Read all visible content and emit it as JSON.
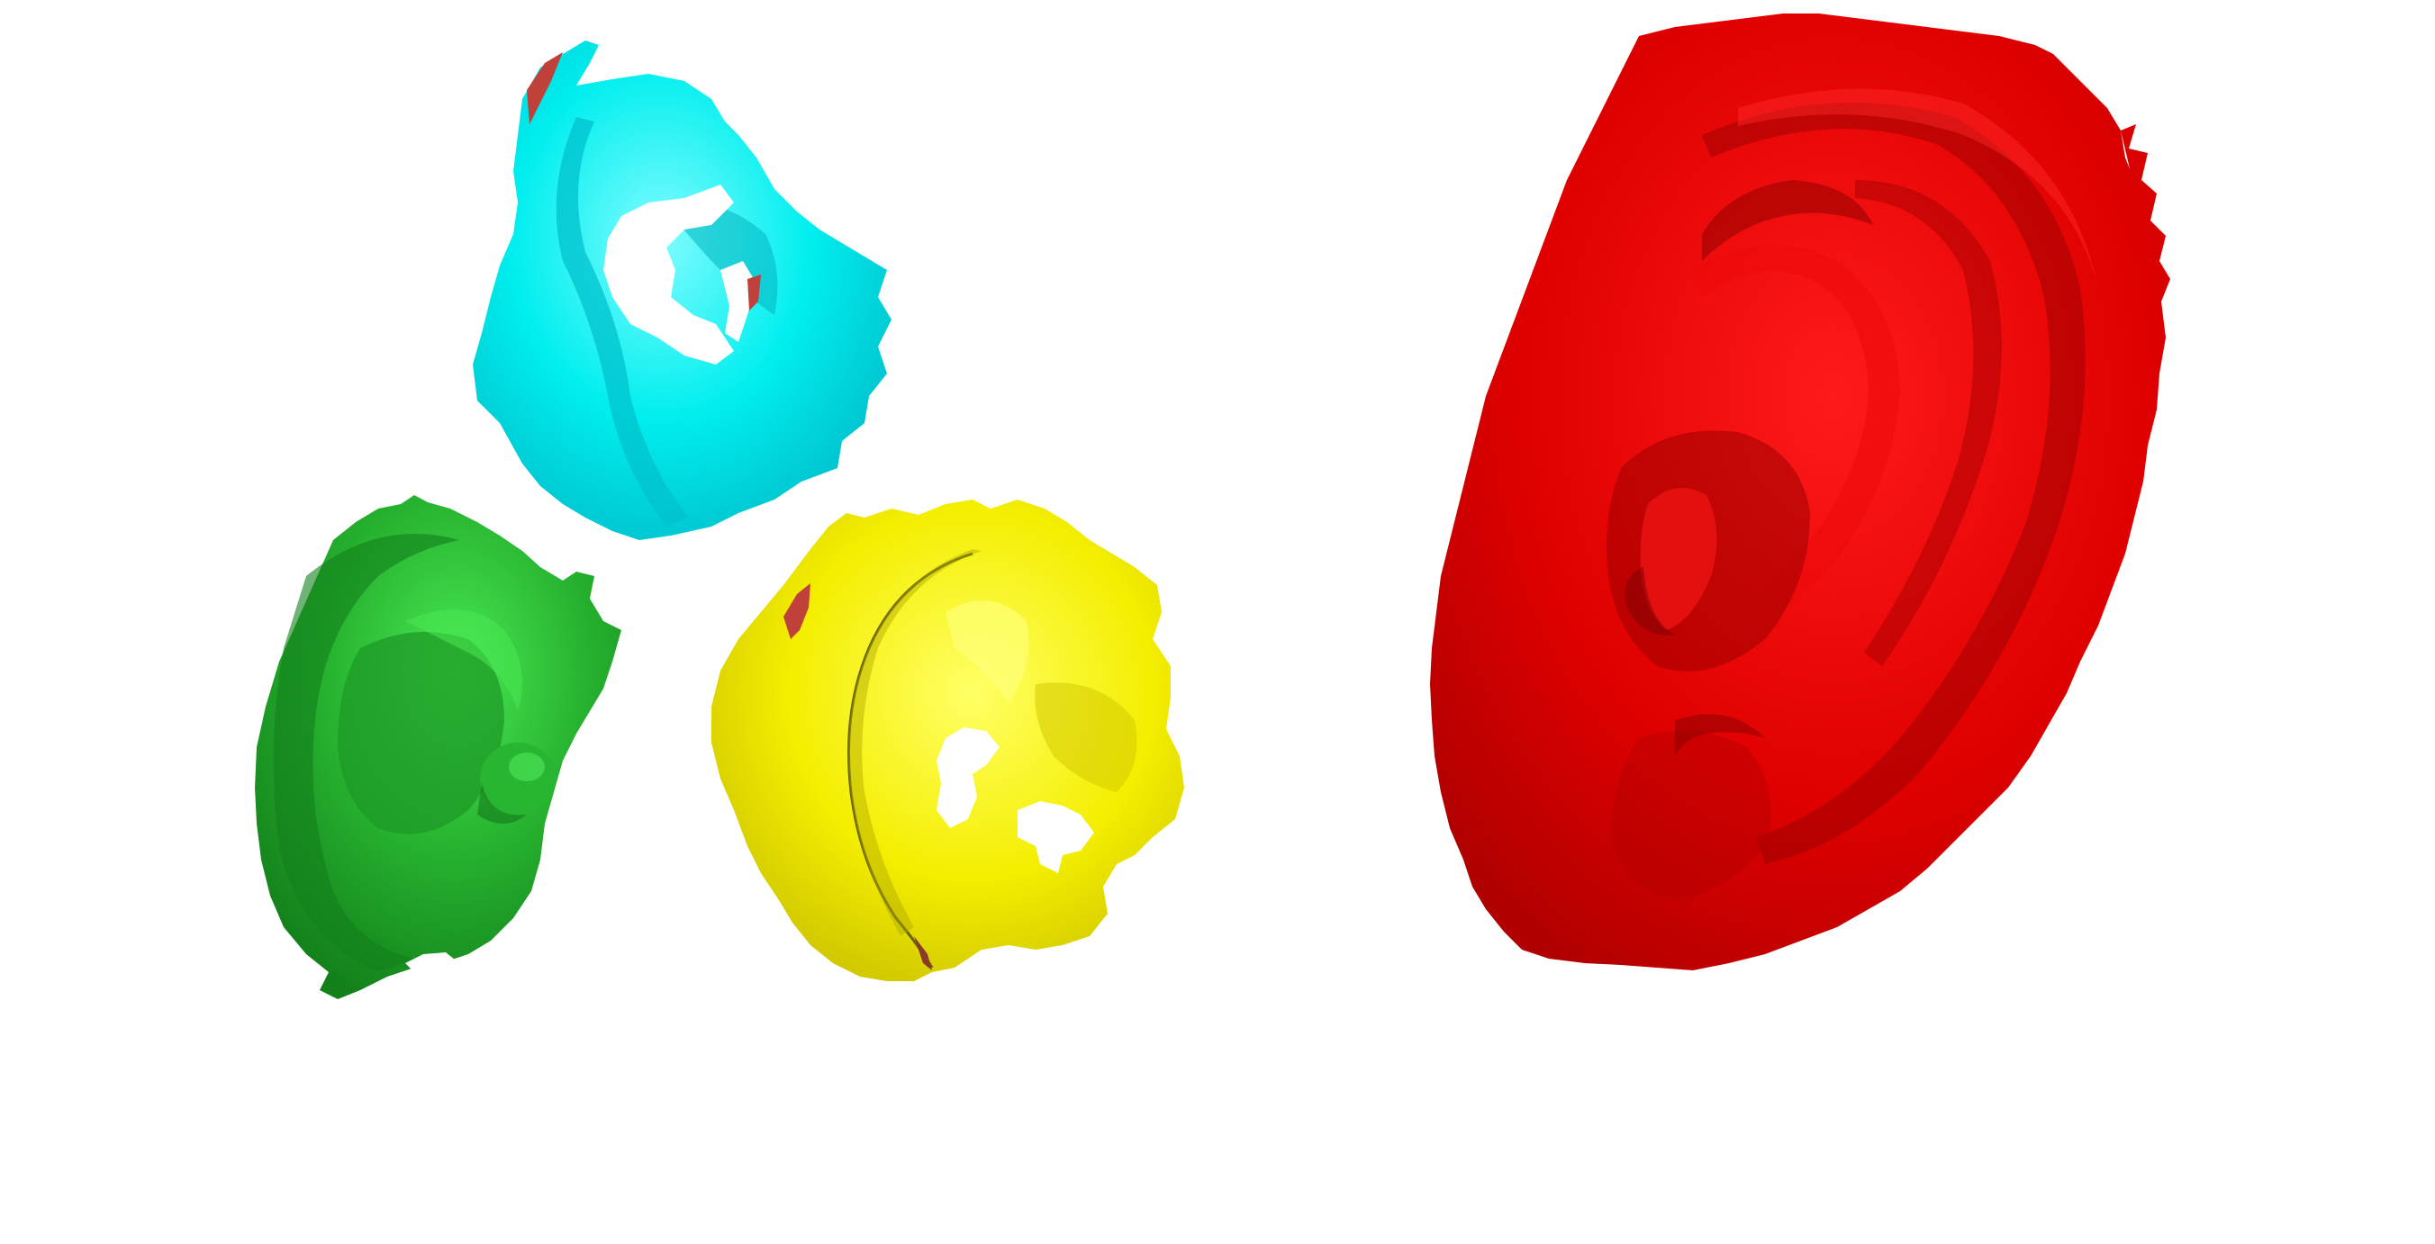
{
  "scene": {
    "background": "#ffffff",
    "meshes": [
      {
        "id": "partial-ear-cyan",
        "color": "#00eeee",
        "shade": "#00b8c4",
        "highlight": "#7ffcff",
        "hole_color": "#ffffff"
      },
      {
        "id": "partial-ear-green",
        "color": "#22b42c",
        "shade": "#127a18",
        "highlight": "#46e650"
      },
      {
        "id": "partial-ear-yellow",
        "color": "#f5f000",
        "shade": "#b0a800",
        "highlight": "#ffff70",
        "hole_color": "#ffffff"
      },
      {
        "id": "full-ear-red",
        "color": "#e00000",
        "shade": "#7c0000",
        "highlight": "#ff2020"
      }
    ],
    "overlap_patch_color": "#c0403a"
  }
}
